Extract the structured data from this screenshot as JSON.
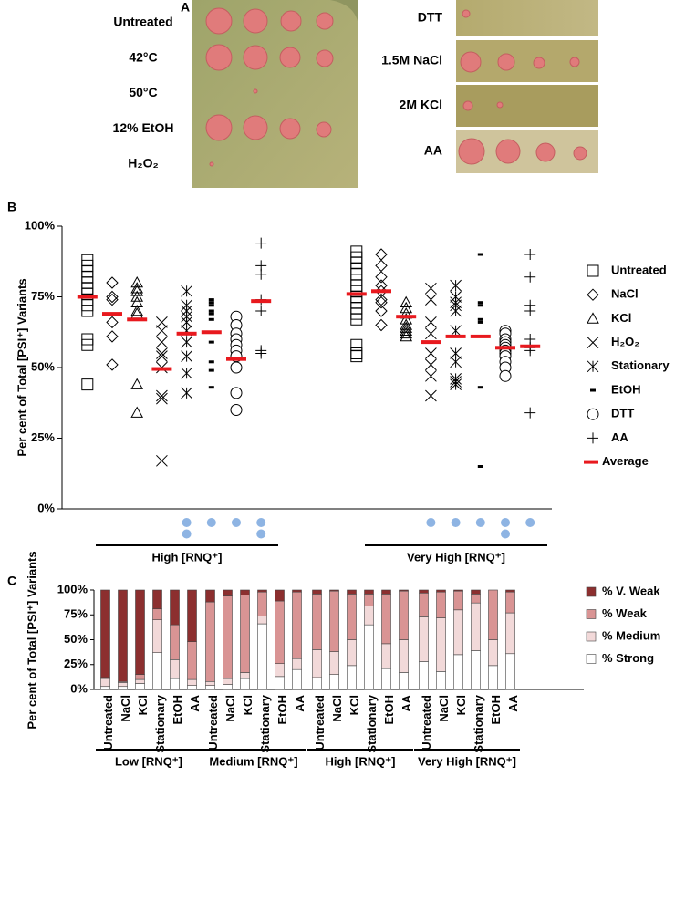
{
  "panel_a": {
    "label": "A",
    "left_labels": [
      "Untreated",
      "42°C",
      "50°C",
      "12% EtOH",
      "H₂O₂"
    ],
    "right_labels": [
      "DTT",
      "1.5M NaCl",
      "2M KCl",
      "AA"
    ]
  },
  "chart_data": [
    {
      "type": "strip",
      "panel_label": "B",
      "y_label": "Per cent of Total [PSI⁺] Variants",
      "ylim": [
        0,
        100
      ],
      "yticks": [
        {
          "value": 0,
          "label": "0%"
        },
        {
          "value": 25,
          "label": "25%"
        },
        {
          "value": 50,
          "label": "50%"
        },
        {
          "value": 75,
          "label": "75%"
        },
        {
          "value": 100,
          "label": "100%"
        }
      ],
      "groups": [
        "High [RNQ⁺]",
        "Very High [RNQ⁺]"
      ],
      "marker_color": "#000000",
      "series": [
        {
          "name": "Untreated",
          "marker": "square",
          "values": [
            [
              88,
              86,
              84,
              82,
              80,
              78,
              76,
              74,
              72,
              70,
              60,
              58,
              44
            ],
            [
              91,
              89,
              87,
              85,
              83,
              81,
              79,
              77,
              75,
              73,
              71,
              69,
              67,
              58,
              55,
              54
            ]
          ],
          "averages": [
            75,
            76
          ]
        },
        {
          "name": "NaCl",
          "marker": "diamond",
          "values": [
            [
              80,
              75,
              74,
              66,
              61,
              51
            ],
            [
              90,
              86,
              82,
              79,
              77,
              74,
              73,
              70,
              65
            ]
          ],
          "averages": [
            69,
            77
          ]
        },
        {
          "name": "KCl",
          "marker": "triangle",
          "values": [
            [
              80,
              78,
              77,
              75,
              73,
              70,
              69,
              44,
              34
            ],
            [
              73,
              71,
              69,
              67,
              65,
              64,
              63,
              62,
              61
            ]
          ],
          "averages": [
            67,
            68
          ]
        },
        {
          "name": "H₂O₂",
          "marker": "x",
          "values": [
            [
              66,
              63,
              59,
              55,
              54,
              50,
              40,
              39,
              17
            ],
            [
              78,
              74,
              66,
              62,
              55,
              51,
              47,
              40
            ]
          ],
          "averages": [
            49.5,
            59
          ]
        },
        {
          "name": "Stationary",
          "marker": "asterisk",
          "values": [
            [
              77,
              72,
              70,
              68,
              66,
              63,
              59,
              54,
              48,
              41
            ],
            [
              79,
              75,
              73,
              72,
              70,
              63,
              55,
              52,
              46,
              45,
              44
            ]
          ],
          "averages": [
            62,
            61
          ]
        },
        {
          "name": "EtOH",
          "marker": "dash",
          "values": [
            [
              74,
              73,
              72,
              70,
              69,
              67,
              59,
              52,
              49,
              43
            ],
            [
              90,
              73,
              72,
              67,
              66,
              43,
              15
            ]
          ],
          "averages": [
            62.5,
            61
          ]
        },
        {
          "name": "DTT",
          "marker": "circle",
          "values": [
            [
              68,
              65,
              62,
              60,
              58,
              56,
              54,
              50,
              41,
              35
            ],
            [
              63,
              62,
              60,
              59,
              58,
              57,
              56,
              55,
              54,
              52,
              50,
              47
            ]
          ],
          "averages": [
            53,
            57
          ]
        },
        {
          "name": "AA",
          "marker": "plus",
          "values": [
            [
              94,
              86,
              83,
              74,
              70,
              56,
              55
            ],
            [
              90,
              82,
              72,
              70,
              60,
              57,
              56,
              34
            ]
          ],
          "averages": [
            73.5,
            57.5
          ]
        }
      ],
      "average_label": "Average",
      "average_color": "#e8191e",
      "significance_dots": [
        [
          0,
          0,
          0,
          0,
          2,
          1,
          1,
          2
        ],
        [
          0,
          0,
          0,
          1,
          1,
          1,
          2,
          1
        ]
      ],
      "significance_color": "#8eb4e3"
    },
    {
      "type": "bar",
      "stacked": true,
      "panel_label": "C",
      "y_label": "Per cent of Total [PSI⁺] Variants",
      "ylim": [
        0,
        100
      ],
      "yticks": [
        {
          "value": 0,
          "label": "0%"
        },
        {
          "value": 25,
          "label": "25%"
        },
        {
          "value": 50,
          "label": "50%"
        },
        {
          "value": 75,
          "label": "75%"
        },
        {
          "value": 100,
          "label": "100%"
        }
      ],
      "groups": [
        {
          "name": "Low [RNQ⁺]",
          "categories": [
            "Untreated",
            "NaCl",
            "KCl",
            "Stationary",
            "EtOH",
            "AA"
          ]
        },
        {
          "name": "Medium [RNQ⁺]",
          "categories": [
            "Untreated",
            "NaCl",
            "KCl",
            "Stationary",
            "EtOH",
            "AA"
          ]
        },
        {
          "name": "High [RNQ⁺]",
          "categories": [
            "Untreated",
            "NaCl",
            "KCl",
            "Stationary",
            "EtOH",
            "AA"
          ]
        },
        {
          "name": "Very High [RNQ⁺]",
          "categories": [
            "Untreated",
            "NaCl",
            "KCl",
            "Stationary",
            "EtOH",
            "AA"
          ]
        }
      ],
      "series": [
        {
          "name": "% Strong",
          "color": "#ffffff",
          "values": [
            [
              3,
              3,
              6,
              37,
              11,
              4
            ],
            [
              4,
              5,
              11,
              66,
              13,
              20
            ],
            [
              12,
              15,
              24,
              65,
              21,
              17
            ],
            [
              28,
              18,
              35,
              39,
              24,
              36
            ]
          ]
        },
        {
          "name": "% Medium",
          "color": "#f2d9d9",
          "values": [
            [
              8,
              4,
              4,
              33,
              19,
              6
            ],
            [
              4,
              6,
              6,
              8,
              13,
              11
            ],
            [
              28,
              23,
              26,
              19,
              25,
              33
            ],
            [
              45,
              54,
              45,
              48,
              26,
              41
            ]
          ]
        },
        {
          "name": "% Weak",
          "color": "#d99494",
          "values": [
            [
              1,
              1,
              5,
              11,
              35,
              38
            ],
            [
              80,
              83,
              78,
              24,
              63,
              67
            ],
            [
              56,
              61,
              46,
              12,
              50,
              49
            ],
            [
              24,
              26,
              19,
              9,
              50,
              21
            ]
          ]
        },
        {
          "name": "% V. Weak",
          "color": "#8c2f2f",
          "values": [
            [
              88,
              92,
              85,
              19,
              35,
              52
            ],
            [
              12,
              6,
              5,
              2,
              11,
              2
            ],
            [
              4,
              1,
              4,
              4,
              4,
              1
            ],
            [
              3,
              2,
              1,
              4,
              0,
              2
            ]
          ]
        }
      ]
    }
  ]
}
